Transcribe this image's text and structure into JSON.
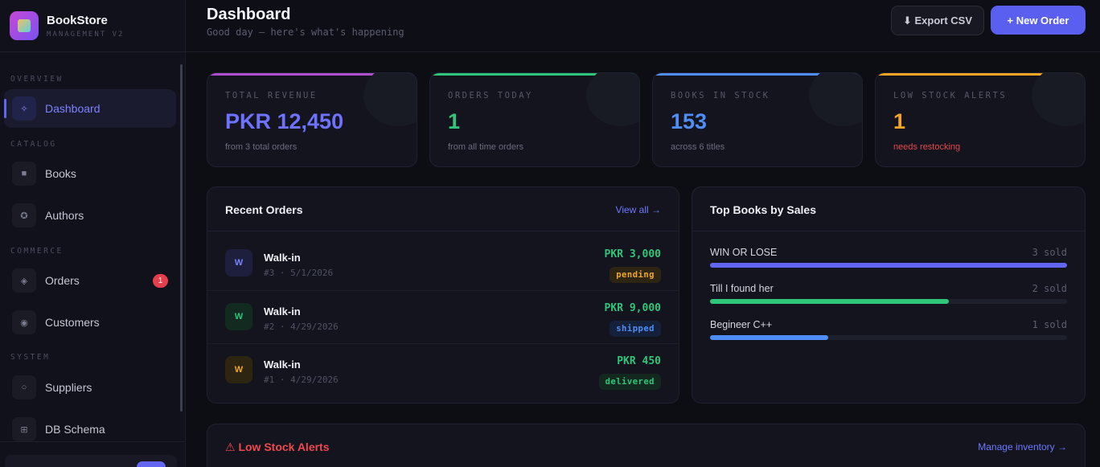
{
  "brand": {
    "name": "BookStore",
    "subtitle": "MANAGEMENT V2"
  },
  "sidebar": {
    "sections": [
      {
        "label": "OVERVIEW"
      },
      {
        "label": "CATALOG"
      },
      {
        "label": "COMMERCE"
      },
      {
        "label": "SYSTEM"
      }
    ],
    "items": [
      {
        "label": "Dashboard",
        "icon": "dashboard-icon",
        "glyph": "✧",
        "active": true
      },
      {
        "label": "Books",
        "icon": "books-icon",
        "glyph": "■"
      },
      {
        "label": "Authors",
        "icon": "authors-icon",
        "glyph": "✪"
      },
      {
        "label": "Orders",
        "icon": "orders-icon",
        "glyph": "◈",
        "badge": "1"
      },
      {
        "label": "Customers",
        "icon": "customers-icon",
        "glyph": "◉"
      },
      {
        "label": "Suppliers",
        "icon": "suppliers-icon",
        "glyph": "○"
      },
      {
        "label": "DB Schema",
        "icon": "db-schema-icon",
        "glyph": "⊞"
      }
    ]
  },
  "header": {
    "title": "Dashboard",
    "subtitle": "Good day — here's what's happening",
    "export_label": "⬇ Export CSV",
    "new_order_label": "+ New Order"
  },
  "stats": [
    {
      "label": "TOTAL REVENUE",
      "value": "PKR 12,450",
      "sub": "from 3 total orders",
      "accent": "#6e72ff",
      "bar": "#b04ed0"
    },
    {
      "label": "ORDERS TODAY",
      "value": "1",
      "sub": "from all time orders",
      "accent": "#2fc67a",
      "bar": "#2fc67a"
    },
    {
      "label": "BOOKS IN STOCK",
      "value": "153",
      "sub": "across 6 titles",
      "accent": "#4f8ef7",
      "bar": "#4f8ef7"
    },
    {
      "label": "LOW STOCK ALERTS",
      "value": "1",
      "sub": "needs restocking",
      "accent": "#f5a524",
      "bar": "#f5a524",
      "sub_color": "#e5484d"
    }
  ],
  "recent_orders": {
    "title": "Recent Orders",
    "link": "View all →",
    "rows": [
      {
        "initial": "W",
        "name": "Walk-in",
        "meta": "#3 · 5/1/2026",
        "amount": "PKR 3,000",
        "status": "pending",
        "avatar_bg": "#1e1f3d",
        "avatar_fg": "#7c82ff",
        "status_bg": "#2e2412",
        "status_fg": "#f0a828"
      },
      {
        "initial": "W",
        "name": "Walk-in",
        "meta": "#2 · 4/29/2026",
        "amount": "PKR 9,000",
        "status": "shipped",
        "avatar_bg": "#132a20",
        "avatar_fg": "#2fc67a",
        "status_bg": "#15203a",
        "status_fg": "#4f8ef7"
      },
      {
        "initial": "W",
        "name": "Walk-in",
        "meta": "#1 · 4/29/2026",
        "amount": "PKR 450",
        "status": "delivered",
        "avatar_bg": "#2e2412",
        "avatar_fg": "#f0a828",
        "status_bg": "#13291f",
        "status_fg": "#2fc67a"
      }
    ]
  },
  "top_books": {
    "title": "Top Books by Sales",
    "rows": [
      {
        "title": "WIN OR LOSE",
        "sold": "3 sold",
        "fraction": 1.0,
        "color": "#6366f1"
      },
      {
        "title": "Till I found her",
        "sold": "2 sold",
        "fraction": 0.67,
        "color": "#2fc67a"
      },
      {
        "title": "Begineer C++",
        "sold": "1 sold",
        "fraction": 0.33,
        "color": "#4f8ef7"
      }
    ]
  },
  "low_stock": {
    "title": "⚠ Low Stock Alerts",
    "link": "Manage inventory →"
  }
}
